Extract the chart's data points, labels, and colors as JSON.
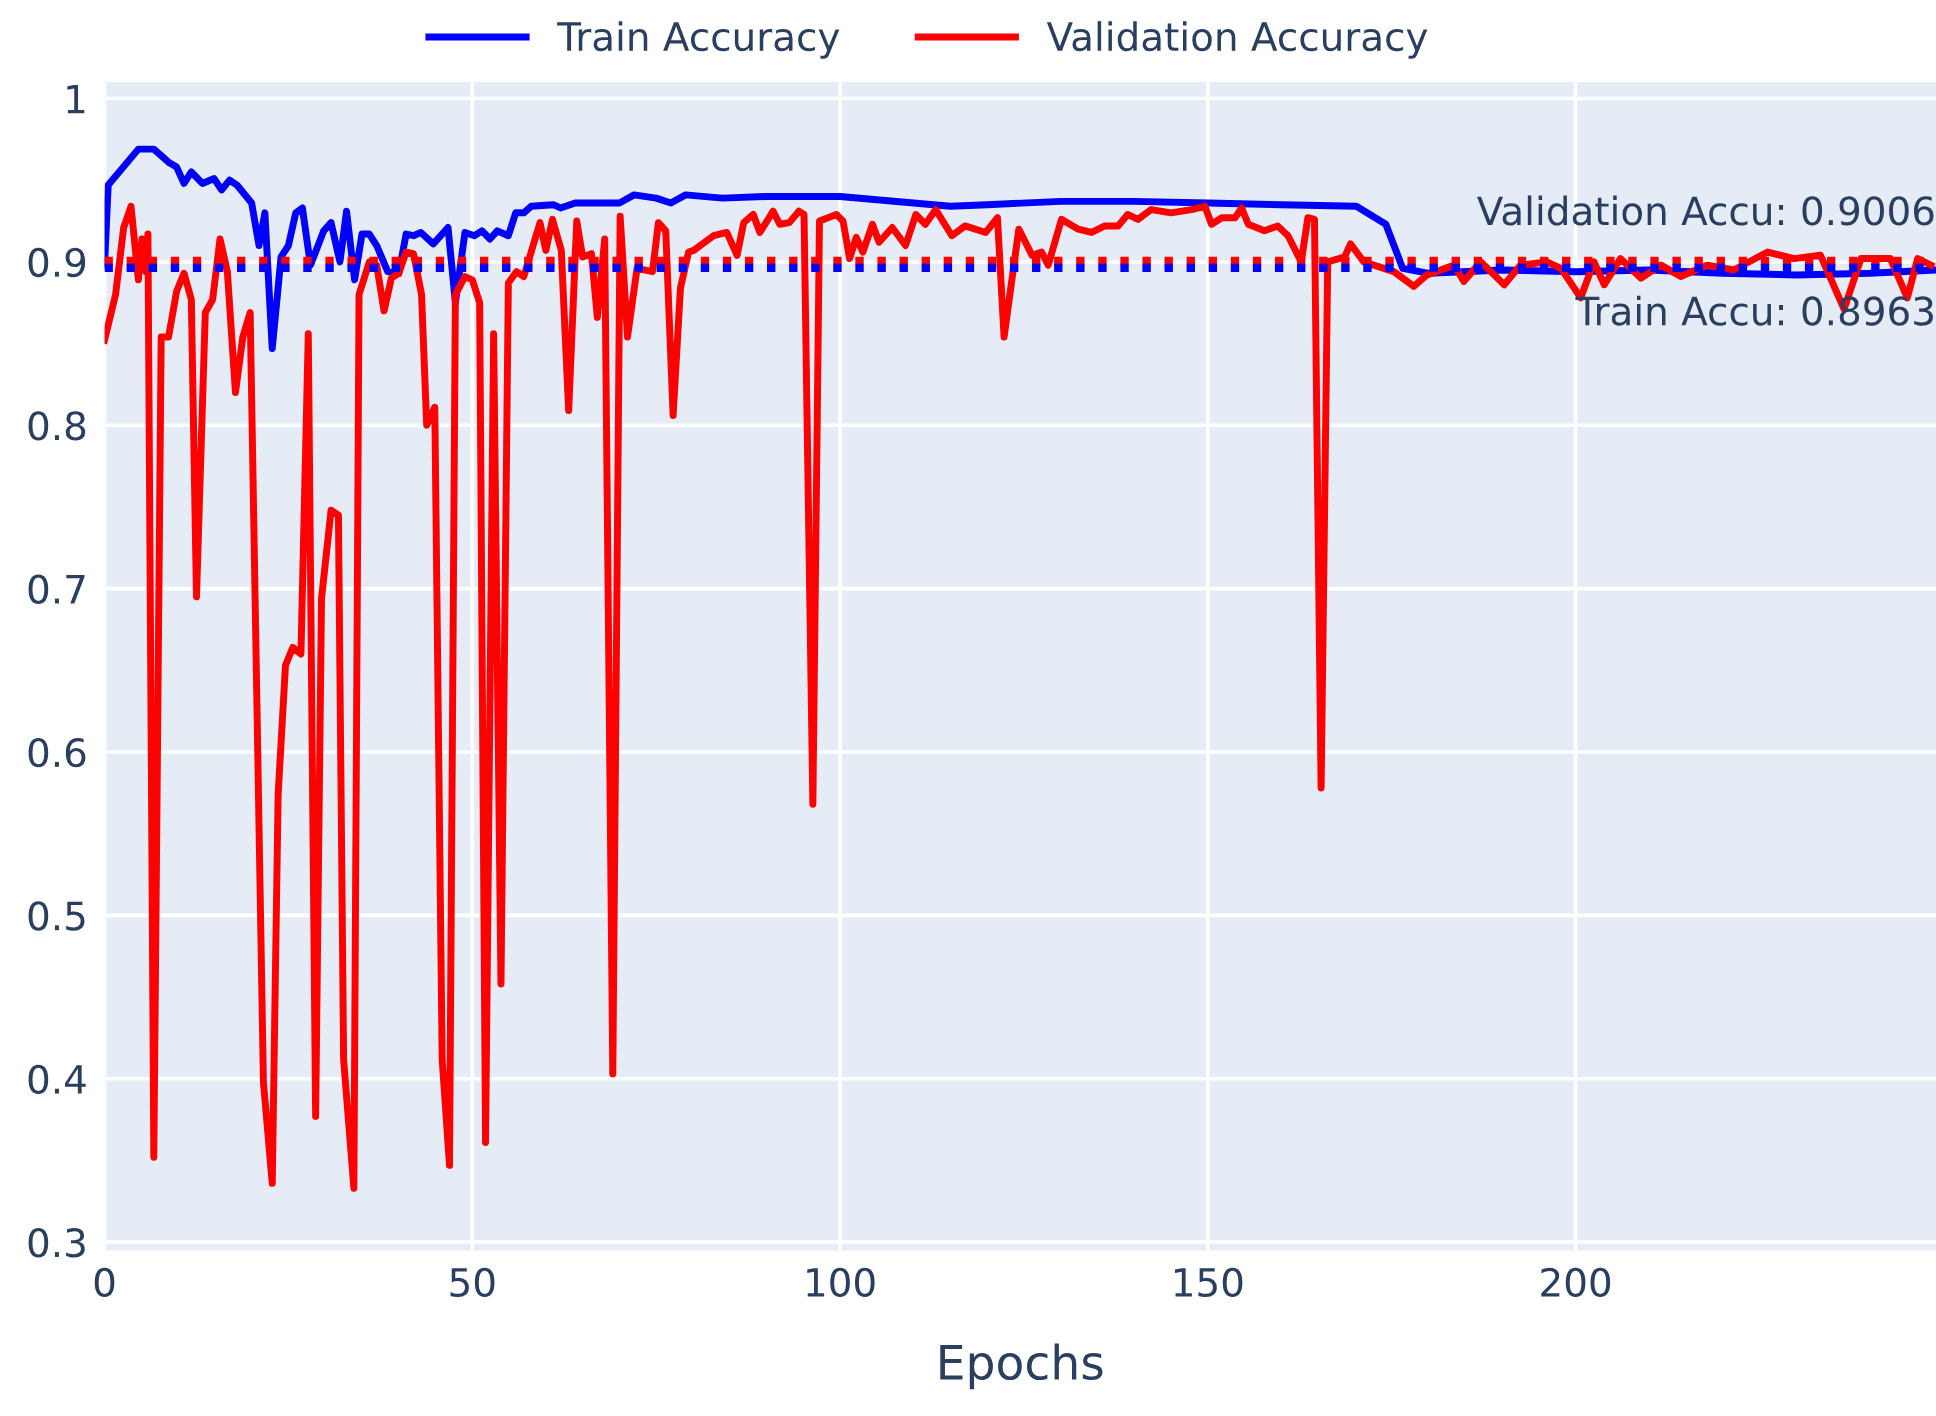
{
  "chart_data": {
    "type": "line",
    "xlabel": "Epochs",
    "xlim": [
      0,
      249
    ],
    "ylim": [
      0.295,
      1.01
    ],
    "xticks": [
      0,
      50,
      100,
      150,
      200
    ],
    "yticks": [
      0.3,
      0.4,
      0.5,
      0.6,
      0.7,
      0.8,
      0.9,
      1
    ],
    "grid": true,
    "legend": "top",
    "line_style": "solid",
    "marker": "none",
    "series": [
      {
        "name": "Train Accuracy",
        "color": "#0000ff",
        "x": [
          0,
          0.5,
          4.6,
          6.7,
          8.7,
          9.8,
          10.8,
          11.8,
          13.3,
          14.9,
          15.9,
          17,
          18,
          20,
          21,
          21.8,
          22.8,
          24,
          25,
          26,
          26.9,
          28,
          29.8,
          30.8,
          32,
          32.9,
          34,
          35,
          36,
          37,
          38.5,
          40,
          41,
          42,
          43,
          44.7,
          46.7,
          47.7,
          49,
          50.3,
          51.3,
          52.4,
          53.4,
          54.9,
          55.9,
          57,
          58,
          61,
          62,
          64,
          70,
          72,
          75,
          77,
          79,
          84,
          90,
          100,
          105,
          110,
          115,
          120,
          130,
          140,
          150,
          160,
          170.2,
          174.2,
          176.5,
          180,
          190,
          200,
          210,
          220,
          230,
          240,
          248.9
        ],
        "values": [
          0.898,
          0.947,
          0.969,
          0.969,
          0.961,
          0.958,
          0.948,
          0.955,
          0.948,
          0.951,
          0.944,
          0.95,
          0.947,
          0.936,
          0.91,
          0.93,
          0.847,
          0.903,
          0.91,
          0.93,
          0.933,
          0.898,
          0.919,
          0.924,
          0.9,
          0.931,
          0.889,
          0.917,
          0.917,
          0.91,
          0.894,
          0.893,
          0.917,
          0.916,
          0.918,
          0.911,
          0.921,
          0.875,
          0.918,
          0.916,
          0.919,
          0.914,
          0.919,
          0.916,
          0.93,
          0.93,
          0.934,
          0.935,
          0.933,
          0.936,
          0.936,
          0.941,
          0.939,
          0.936,
          0.941,
          0.939,
          0.94,
          0.94,
          0.938,
          0.936,
          0.934,
          0.935,
          0.937,
          0.937,
          0.936,
          0.935,
          0.934,
          0.923,
          0.896,
          0.893,
          0.895,
          0.894,
          0.895,
          0.893,
          0.892,
          0.893,
          0.895
        ]
      },
      {
        "name": "Validation Accuracy",
        "color": "#ff0000",
        "x": [
          0,
          1.5,
          2.6,
          3.6,
          4.6,
          5.1,
          5.6,
          5.9,
          6.7,
          7.7,
          8.7,
          9.8,
          10.8,
          11.8,
          12.5,
          13.7,
          14.7,
          15.7,
          16.7,
          17.8,
          18.8,
          19.8,
          21.6,
          22.8,
          23.6,
          24.6,
          25.6,
          26.7,
          27.7,
          28.7,
          29.5,
          30.8,
          31.8,
          32.5,
          33.9,
          34.6,
          36,
          37,
          38,
          39,
          40,
          41,
          42,
          43.1,
          43.8,
          44.9,
          45.9,
          46.9,
          47.7,
          49,
          50,
          51,
          51.8,
          52.9,
          53.9,
          54.9,
          56,
          57,
          58,
          59.2,
          60,
          60.9,
          62.1,
          63.1,
          64.2,
          65,
          66.2,
          67,
          68,
          69.1,
          70.1,
          71.1,
          72.4,
          74.5,
          75.3,
          76.3,
          77.3,
          78.3,
          79.4,
          80.1,
          82.8,
          84.6,
          86,
          86.9,
          88.2,
          89.1,
          90.9,
          91.8,
          93.1,
          94.4,
          95.1,
          96.3,
          97.2,
          99.5,
          100.4,
          101.3,
          102.2,
          103.1,
          104.4,
          105.3,
          107.1,
          108.9,
          110.3,
          111.6,
          113,
          115.2,
          117,
          119.8,
          121.4,
          122.3,
          124.3,
          126.1,
          127.4,
          128.3,
          130.1,
          132.4,
          134.2,
          136,
          137.8,
          139.1,
          140.5,
          142.3,
          145,
          147.8,
          149.6,
          150.5,
          151.9,
          153.7,
          154.6,
          155.5,
          157.7,
          159.5,
          160.9,
          162.7,
          163.6,
          164.5,
          165.4,
          166.3,
          168.6,
          169.4,
          171.2,
          175.3,
          178,
          179.8,
          183.5,
          184.8,
          187.1,
          190.3,
          192.5,
          196.1,
          198,
          200.7,
          202.5,
          203.9,
          206.1,
          208.9,
          211.6,
          214.3,
          217.9,
          221.5,
          226.1,
          229.7,
          233.3,
          236.5,
          238.8,
          242.8,
          245.1,
          246.5,
          248.3
        ],
        "values": [
          0.852,
          0.88,
          0.921,
          0.934,
          0.889,
          0.914,
          0.894,
          0.917,
          0.352,
          0.854,
          0.854,
          0.882,
          0.893,
          0.877,
          0.695,
          0.869,
          0.877,
          0.914,
          0.894,
          0.82,
          0.854,
          0.869,
          0.398,
          0.336,
          0.574,
          0.653,
          0.664,
          0.66,
          0.856,
          0.377,
          0.694,
          0.748,
          0.745,
          0.412,
          0.333,
          0.88,
          0.9,
          0.898,
          0.87,
          0.89,
          0.893,
          0.906,
          0.905,
          0.88,
          0.8,
          0.811,
          0.412,
          0.347,
          0.88,
          0.891,
          0.889,
          0.875,
          0.361,
          0.856,
          0.458,
          0.887,
          0.894,
          0.891,
          0.906,
          0.924,
          0.907,
          0.926,
          0.907,
          0.809,
          0.925,
          0.903,
          0.905,
          0.866,
          0.914,
          0.403,
          0.928,
          0.854,
          0.896,
          0.894,
          0.924,
          0.919,
          0.806,
          0.884,
          0.906,
          0.907,
          0.916,
          0.918,
          0.904,
          0.924,
          0.929,
          0.918,
          0.931,
          0.923,
          0.924,
          0.931,
          0.929,
          0.568,
          0.925,
          0.929,
          0.925,
          0.902,
          0.915,
          0.906,
          0.923,
          0.912,
          0.921,
          0.91,
          0.929,
          0.923,
          0.932,
          0.916,
          0.922,
          0.918,
          0.927,
          0.854,
          0.92,
          0.904,
          0.906,
          0.898,
          0.926,
          0.92,
          0.918,
          0.922,
          0.922,
          0.929,
          0.926,
          0.932,
          0.93,
          0.932,
          0.934,
          0.923,
          0.927,
          0.927,
          0.933,
          0.923,
          0.919,
          0.922,
          0.916,
          0.9,
          0.927,
          0.926,
          0.578,
          0.9,
          0.903,
          0.911,
          0.9,
          0.894,
          0.885,
          0.892,
          0.898,
          0.888,
          0.9,
          0.886,
          0.898,
          0.9,
          0.896,
          0.878,
          0.9,
          0.886,
          0.902,
          0.89,
          0.898,
          0.891,
          0.898,
          0.895,
          0.906,
          0.902,
          0.904,
          0.871,
          0.902,
          0.902,
          0.878,
          0.902,
          0.898
        ]
      }
    ],
    "ref_lines": [
      {
        "axis": "y",
        "value": 0.9006,
        "label": "Validation Accu: 0.9006",
        "color": "#ff0000",
        "line_style": "dotted"
      },
      {
        "axis": "y",
        "value": 0.8963,
        "label": "Train Accu: 0.8963",
        "color": "#0000ff",
        "line_style": "dotted"
      }
    ]
  }
}
